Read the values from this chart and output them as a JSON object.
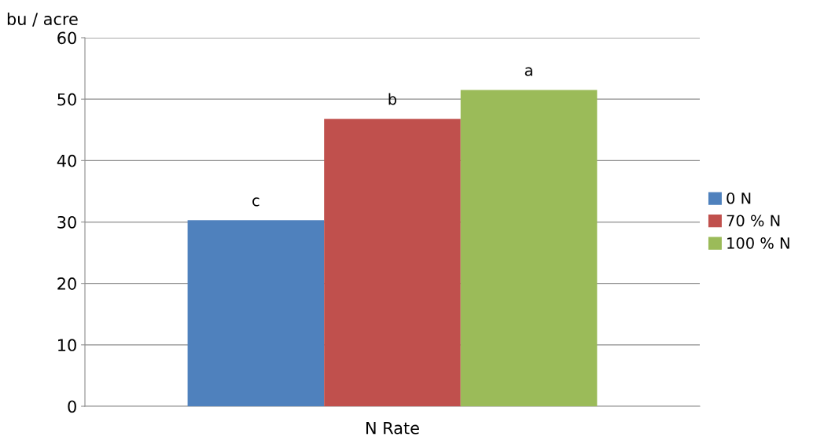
{
  "chart_data": {
    "type": "bar",
    "ylabel": "bu / acre",
    "categories": [
      "N Rate"
    ],
    "series": [
      {
        "name": "0 N",
        "color": "#4f81bd",
        "values": [
          30.3
        ],
        "value_labels": [
          "c"
        ]
      },
      {
        "name": "70 % N",
        "color": "#c0504d",
        "values": [
          46.8
        ],
        "value_labels": [
          "b"
        ]
      },
      {
        "name": "100 % N",
        "color": "#9bbb59",
        "values": [
          51.5
        ],
        "value_labels": [
          "a"
        ]
      }
    ],
    "ylim": [
      0,
      60
    ],
    "yticks": [
      0,
      10,
      20,
      30,
      40,
      50,
      60
    ],
    "grid": "y",
    "legend": "right"
  }
}
